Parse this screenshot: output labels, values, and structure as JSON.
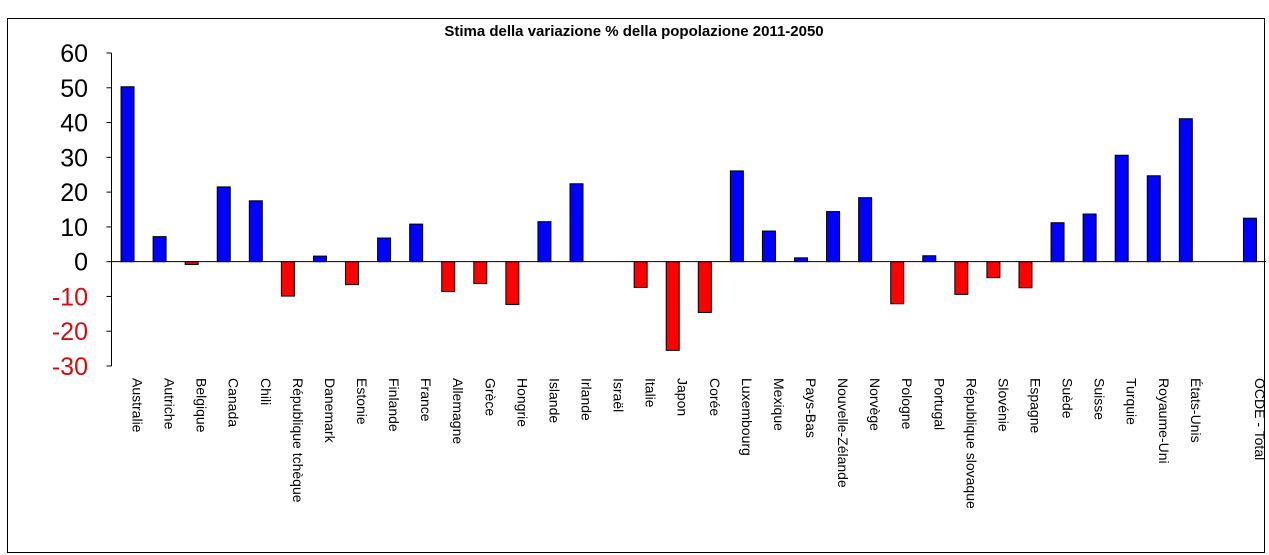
{
  "chart_data": {
    "type": "bar",
    "title": "Stima della variazione % della popolazione 2011-2050",
    "xlabel": "",
    "ylabel": "",
    "ylim": [
      -30,
      60
    ],
    "yticks": [
      "60",
      "50",
      "40",
      "30",
      "20",
      "10",
      "0",
      "-10",
      "-20",
      "-30"
    ],
    "grid": false,
    "legend": "none",
    "colors": {
      "positive": "#0000ff",
      "negative": "#ff0000",
      "positive_tick": "#000000",
      "negative_tick": "#d01010",
      "axis": "#000000"
    },
    "categories": [
      "Australie",
      "Autriche",
      "Belgique",
      "Canada",
      "Chili",
      "République tchèque",
      "Danemark",
      "Estonie",
      "Finlande",
      "France",
      "Allemagne",
      "Grèce",
      "Hongrie",
      "Islande",
      "Irlande",
      "Israël",
      "Italie",
      "Japon",
      "Corée",
      "Luxembourg",
      "Mexique",
      "Pays-Bas",
      "Nouvelle-Zélande",
      "Norvège",
      "Pologne",
      "Portugal",
      "République slovaque",
      "Slovénie",
      "Espagne",
      "Suède",
      "Suisse",
      "Turquie",
      "Royaume-Uni",
      "États-Unis",
      "",
      "OCDE - Total"
    ],
    "values": [
      50.3,
      7.2,
      -0.8,
      21.5,
      17.5,
      -9.9,
      1.6,
      -6.6,
      6.8,
      10.8,
      -8.6,
      -6.3,
      -12.3,
      11.5,
      22.4,
      null,
      -7.4,
      -25.5,
      -14.6,
      26.1,
      8.8,
      1.1,
      14.4,
      18.4,
      -12.1,
      1.7,
      -9.4,
      -4.6,
      -7.5,
      11.2,
      13.7,
      30.6,
      24.7,
      41.1,
      null,
      12.5
    ]
  }
}
